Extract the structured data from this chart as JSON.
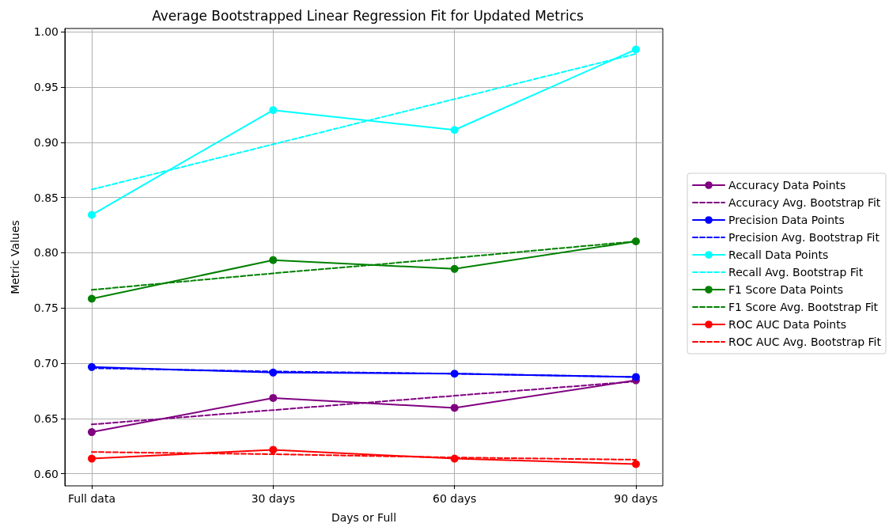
{
  "chart_data": {
    "type": "line",
    "title": "Average Bootstrapped Linear Regression Fit for Updated Metrics",
    "xlabel": "Days or Full",
    "ylabel": "Metric Values",
    "categories": [
      "Full data",
      "30 days",
      "60 days",
      "90 days"
    ],
    "series": [
      {
        "name": "Accuracy Data Points",
        "color": "#800080",
        "values": [
          0.637,
          0.668,
          0.659,
          0.684
        ],
        "marker": "circle",
        "line_style": "solid"
      },
      {
        "name": "Accuracy Avg. Bootstrap Fit",
        "color": "#800080",
        "values": [
          0.644,
          0.657,
          0.67,
          0.683
        ],
        "marker": "none",
        "line_style": "dashed"
      },
      {
        "name": "Precision Data Points",
        "color": "#0000ff",
        "values": [
          0.696,
          0.691,
          0.69,
          0.687
        ],
        "marker": "circle",
        "line_style": "solid"
      },
      {
        "name": "Precision Avg. Bootstrap Fit",
        "color": "#0000ff",
        "values": [
          0.695,
          0.692,
          0.69,
          0.687
        ],
        "marker": "none",
        "line_style": "dashed"
      },
      {
        "name": "Recall Data Points",
        "color": "#00ffff",
        "values": [
          0.834,
          0.929,
          0.911,
          0.984
        ],
        "marker": "circle",
        "line_style": "solid"
      },
      {
        "name": "Recall Avg. Bootstrap Fit",
        "color": "#00ffff",
        "values": [
          0.857,
          0.898,
          0.939,
          0.98
        ],
        "marker": "none",
        "line_style": "dashed"
      },
      {
        "name": "F1 Score Data Points",
        "color": "#008000",
        "values": [
          0.758,
          0.793,
          0.785,
          0.81
        ],
        "marker": "circle",
        "line_style": "solid"
      },
      {
        "name": "F1 Score Avg. Bootstrap Fit",
        "color": "#008000",
        "values": [
          0.766,
          0.781,
          0.795,
          0.81
        ],
        "marker": "none",
        "line_style": "dashed"
      },
      {
        "name": "ROC AUC Data Points",
        "color": "#ff0000",
        "values": [
          0.613,
          0.621,
          0.613,
          0.608
        ],
        "marker": "circle",
        "line_style": "solid"
      },
      {
        "name": "ROC AUC Avg. Bootstrap Fit",
        "color": "#ff0000",
        "values": [
          0.619,
          0.617,
          0.614,
          0.612
        ],
        "marker": "none",
        "line_style": "dashed"
      }
    ],
    "ylim": [
      0.589,
      1.003
    ],
    "yticks": [
      {
        "value": 0.6,
        "label": "0.60"
      },
      {
        "value": 0.65,
        "label": "0.65"
      },
      {
        "value": 0.7,
        "label": "0.70"
      },
      {
        "value": 0.75,
        "label": "0.75"
      },
      {
        "value": 0.8,
        "label": "0.80"
      },
      {
        "value": 0.85,
        "label": "0.85"
      },
      {
        "value": 0.9,
        "label": "0.90"
      },
      {
        "value": 0.95,
        "label": "0.95"
      },
      {
        "value": 1.0,
        "label": "1.00"
      }
    ],
    "grid": true,
    "legend": "right"
  }
}
